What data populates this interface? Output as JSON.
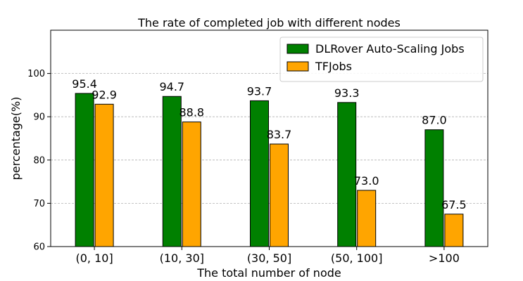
{
  "chart_data": {
    "type": "bar",
    "title": "The rate of completed job with different nodes",
    "xlabel": "The total number of node",
    "ylabel": "percentage(%)",
    "categories": [
      "(0, 10]",
      "(10, 30]",
      "(30, 50]",
      "(50, 100]",
      ">100"
    ],
    "series": [
      {
        "name": "DLRover Auto-Scaling Jobs",
        "color": "#008000",
        "values": [
          95.4,
          94.7,
          93.7,
          93.3,
          87.0
        ],
        "labels": [
          "95.4",
          "94.7",
          "93.7",
          "93.3",
          "87.0"
        ]
      },
      {
        "name": "TFJobs",
        "color": "#FFA500",
        "values": [
          92.9,
          88.8,
          83.7,
          73.0,
          67.5
        ],
        "labels": [
          "92.9",
          "88.8",
          "83.7",
          "73.0",
          "67.5"
        ]
      }
    ],
    "ylim": [
      60,
      110
    ],
    "yticks": [
      "60",
      "70",
      "80",
      "90",
      "100"
    ],
    "grid": "horizontal dashed",
    "legend": "top-right"
  }
}
